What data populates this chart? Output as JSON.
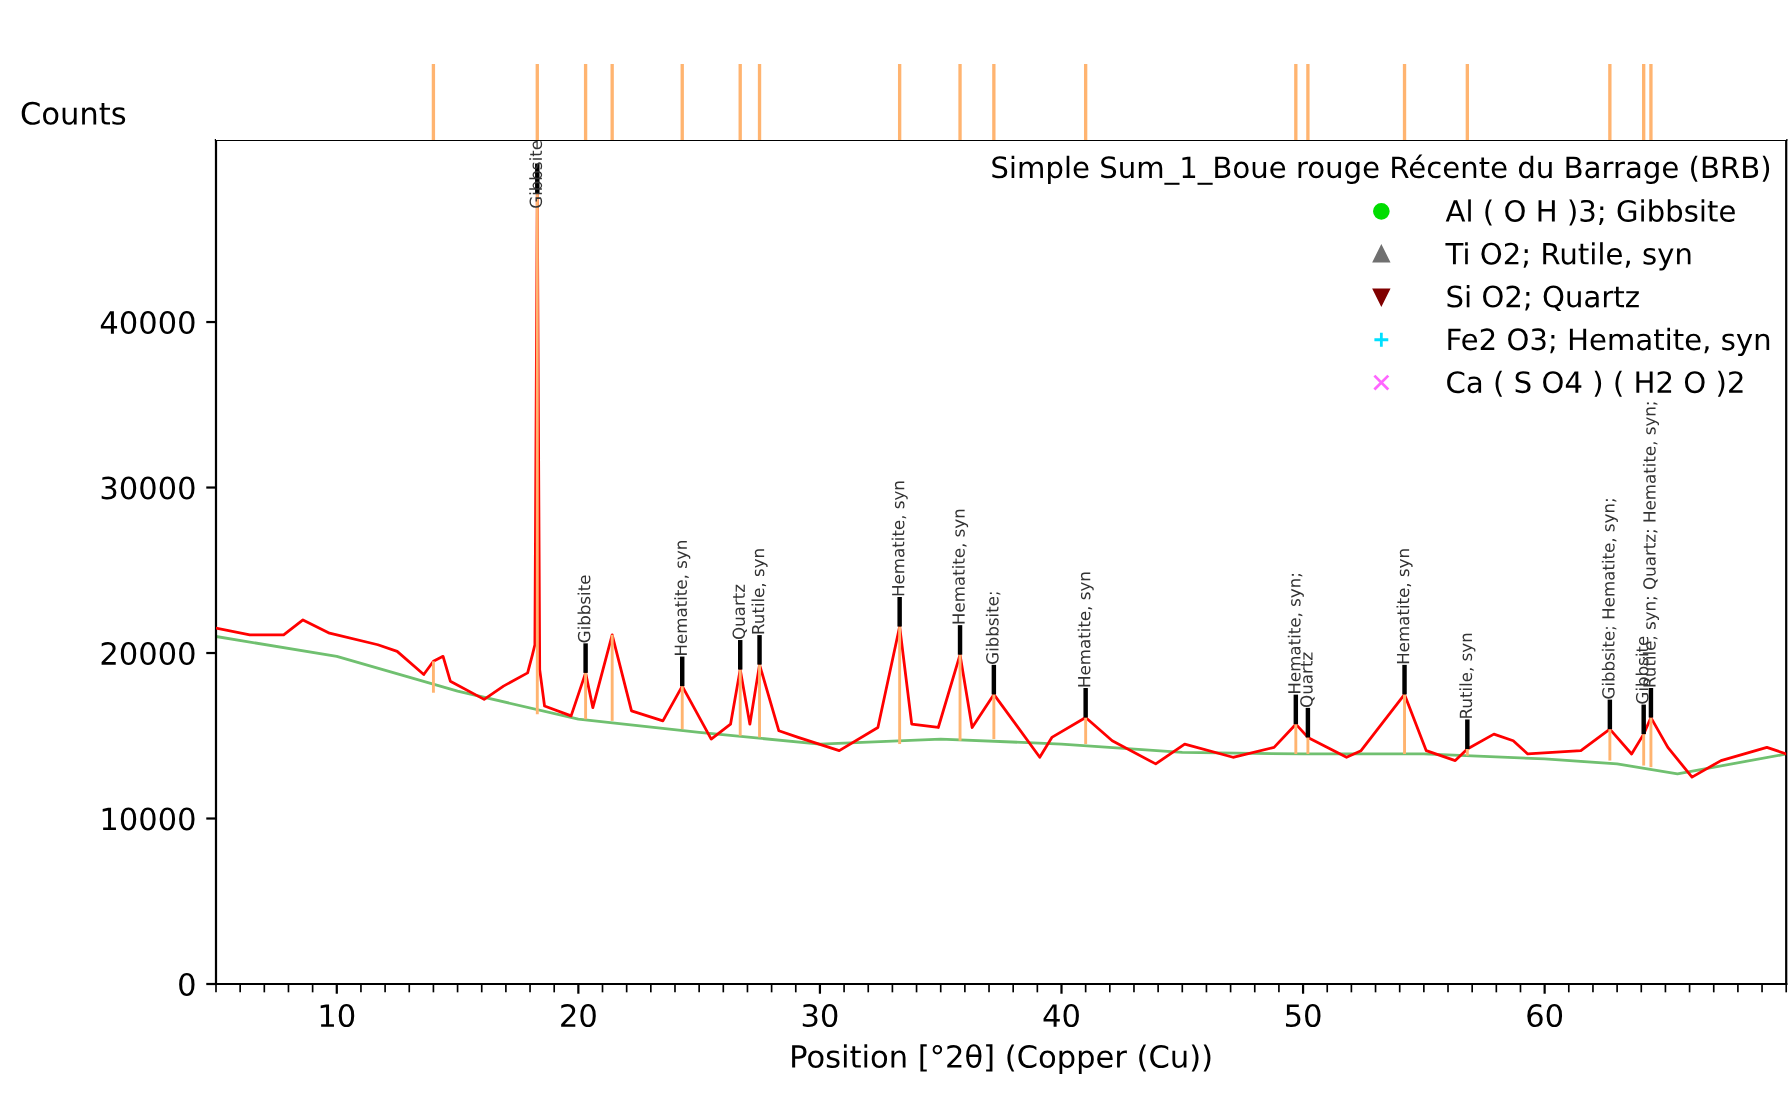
{
  "chart_data": {
    "type": "line",
    "ylabel": "Counts",
    "xlabel": "Position [°2θ] (Copper (Cu))",
    "legend_title": "Simple Sum_1_Boue rouge Récente du Barrage (BRB)",
    "legend": "top right",
    "grid": false,
    "xlim": [
      5,
      70
    ],
    "xticks": [
      10,
      20,
      30,
      40,
      50,
      60
    ],
    "ylim": [
      0,
      51000
    ],
    "yticks": [
      0,
      10000,
      20000,
      30000,
      40000
    ],
    "series": [
      {
        "color": "#ff0000",
        "x": [
          5.0,
          6.4,
          7.8,
          8.6,
          9.7,
          11.7,
          12.5,
          13.6,
          14.0,
          14.4,
          14.7,
          16.1,
          16.9,
          17.9,
          18.1,
          18.2,
          18.3,
          18.4,
          18.6,
          19.7,
          20.3,
          20.6,
          21.4,
          22.2,
          23.5,
          24.3,
          25.5,
          26.3,
          26.7,
          27.1,
          27.5,
          28.3,
          29.1,
          30.8,
          32.4,
          33.3,
          33.8,
          34.9,
          35.8,
          36.3,
          37.2,
          39.1,
          39.6,
          41.0,
          42.1,
          43.9,
          45.1,
          47.1,
          48.8,
          49.7,
          50.2,
          51.8,
          52.4,
          54.2,
          55.1,
          56.3,
          56.8,
          57.9,
          58.7,
          59.3,
          61.5,
          62.7,
          63.6,
          64.1,
          64.4,
          65.1,
          66.1,
          67.3,
          69.2,
          70.0
        ],
        "values": [
          21500,
          21100,
          21100,
          22000,
          21200,
          20500,
          20100,
          18700,
          19500,
          19800,
          18300,
          17200,
          18000,
          18800,
          19900,
          20500,
          47800,
          19000,
          16800,
          16200,
          18800,
          16700,
          21100,
          16500,
          15900,
          18000,
          14800,
          15700,
          19000,
          15700,
          19300,
          15300,
          14900,
          14100,
          15500,
          21600,
          15700,
          15500,
          19900,
          15500,
          17500,
          13700,
          14900,
          16100,
          14700,
          13300,
          14500,
          13700,
          14300,
          15700,
          14900,
          13700,
          14100,
          17500,
          14100,
          13500,
          14200,
          15100,
          14700,
          13900,
          14100,
          15400,
          13900,
          15100,
          16100,
          14300,
          12500,
          13500,
          14300,
          13900
        ]
      },
      {
        "color": "#70c070",
        "x": [
          5,
          10,
          15,
          20,
          25,
          30,
          35,
          40,
          45,
          50,
          55,
          60,
          63,
          65.5,
          70
        ],
        "values": [
          21000,
          19800,
          17700,
          16000,
          15200,
          14500,
          14800,
          14500,
          14000,
          13900,
          13900,
          13600,
          13300,
          12700,
          13900
        ]
      },
      {
        "type": "bar",
        "color": "#ffb470",
        "x": [
          14.0,
          18.3,
          20.3,
          21.4,
          24.3,
          26.7,
          27.5,
          33.3,
          35.8,
          37.2,
          41.0,
          49.7,
          50.2,
          54.2,
          56.8,
          62.7,
          64.1,
          64.4
        ],
        "base": [
          17600,
          16300,
          16000,
          15900,
          15400,
          15000,
          14900,
          14500,
          14700,
          14800,
          14500,
          13900,
          13900,
          13900,
          13800,
          13500,
          13200,
          13100
        ],
        "values": [
          1900,
          31500,
          2800,
          5200,
          2600,
          4000,
          4400,
          7100,
          5200,
          2700,
          1600,
          1800,
          1000,
          3600,
          400,
          1900,
          1900,
          3000
        ]
      },
      {
        "type": "scatter",
        "name": "Al ( O H )3; Gibbsite",
        "color": "#00dd00",
        "marker": "circle"
      },
      {
        "type": "scatter",
        "name": "Ti O2; Rutile, syn",
        "color": "#707070",
        "marker": "triangle"
      },
      {
        "type": "scatter",
        "name": "Si O2; Quartz",
        "color": "#800000",
        "marker": "triangle_down"
      },
      {
        "type": "scatter",
        "name": "Fe2 O3; Hematite, syn",
        "color": "#00e0ff",
        "marker": "plus"
      },
      {
        "type": "scatter",
        "name": "Ca ( S O4 ) ( H2 O )2",
        "color": "#ff66ff",
        "marker": "cross"
      }
    ],
    "annotations": [
      {
        "text": "Gibbsite",
        "x": 18.3,
        "y": 47800
      },
      {
        "text": "Gibbsite",
        "x": 20.3,
        "y": 18800
      },
      {
        "text": "Hematite, syn",
        "x": 24.3,
        "y": 18000
      },
      {
        "text": "Quartz",
        "x": 26.7,
        "y": 19000
      },
      {
        "text": "Rutile, syn",
        "x": 27.5,
        "y": 19300
      },
      {
        "text": "Hematite, syn",
        "x": 33.3,
        "y": 21600
      },
      {
        "text": "Hematite, syn",
        "x": 35.8,
        "y": 19900
      },
      {
        "text": "Gibbsite;",
        "x": 37.2,
        "y": 17500
      },
      {
        "text": "Hematite, syn",
        "x": 41.0,
        "y": 16100
      },
      {
        "text": "Hematite, syn;",
        "x": 49.7,
        "y": 15700
      },
      {
        "text": "Quartz",
        "x": 50.2,
        "y": 14900
      },
      {
        "text": "Hematite, syn",
        "x": 54.2,
        "y": 17500
      },
      {
        "text": "Rutile, syn",
        "x": 56.8,
        "y": 14200
      },
      {
        "text": "Gibbsite; Hematite, syn;",
        "x": 62.7,
        "y": 15400
      },
      {
        "text": "Gibbsite",
        "x": 64.1,
        "y": 15100
      },
      {
        "text": "Rutile, syn; Quartz; Hematite, syn;",
        "x": 64.4,
        "y": 16100
      }
    ]
  }
}
